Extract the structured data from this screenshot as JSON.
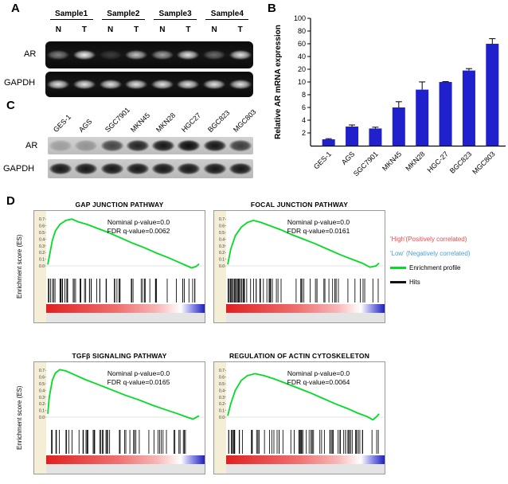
{
  "panelA": {
    "label": "A",
    "samples": [
      "Sample1",
      "Sample2",
      "Sample3",
      "Sample4"
    ],
    "lane_labels": [
      "N",
      "T",
      "N",
      "T",
      "N",
      "T",
      "N",
      "T"
    ],
    "row_ar": "AR",
    "row_gapdh": "GAPDH",
    "ar_band_intensities": [
      0.5,
      1,
      0.18,
      0.8,
      0.65,
      0.95,
      0.4,
      0.95
    ],
    "gapdh_band_intensities": [
      0.95,
      0.95,
      0.95,
      0.95,
      0.95,
      0.95,
      0.95,
      0.95
    ]
  },
  "panelB": {
    "label": "B"
  },
  "panelC": {
    "label": "C",
    "cell_lines": [
      "GES-1",
      "AGS",
      "SGC7901",
      "MKN45",
      "MKN28",
      "HGC27",
      "BGC823",
      "MGC803"
    ],
    "row_ar": "AR",
    "row_gapdh": "GAPDH",
    "ar_band_intensities": [
      0.22,
      0.28,
      0.7,
      0.88,
      0.95,
      1,
      0.95,
      0.75
    ],
    "gapdh_band_intensities": [
      0.95,
      0.95,
      0.95,
      0.95,
      0.95,
      0.95,
      0.95,
      0.95
    ]
  },
  "panelD": {
    "label": "D",
    "es_axis_label": "Enrichment score (ES)",
    "legend": {
      "high": "'High'(Positively correlated)",
      "low": "'Low' (Negatively correlated)",
      "profile": "Enrichment profile",
      "hits": "Hits",
      "high_color": "#e84a4a",
      "low_color": "#4a9fd8",
      "profile_color": "#00dd22",
      "hits_color": "#111111"
    }
  },
  "chart_data": [
    {
      "type": "bar",
      "title": "",
      "xlabel": "",
      "ylabel": "Relative AR mRNA expression",
      "categories": [
        "GES-1",
        "AGS",
        "SGC7901",
        "MKN45",
        "MKN28",
        "HGC-27",
        "BGC823",
        "MGC803"
      ],
      "values": [
        1,
        3,
        2.7,
        6,
        8.8,
        10,
        28,
        70
      ],
      "errors": [
        0.1,
        0.25,
        0.2,
        0.9,
        1.3,
        0.6,
        3,
        8
      ],
      "yticks": [
        2,
        4,
        6,
        8,
        10,
        20,
        40,
        60,
        80,
        100
      ],
      "axis_note": "split linear axis: 0-10 lower half, 10-100 upper half",
      "bar_color": "#2020cc",
      "legend_position": "none",
      "grid": false
    },
    {
      "type": "line",
      "title": "GAP JUNCTION PATHWAY",
      "ylabel": "Enrichment score (ES)",
      "p_label": "Nominal p-value=0.0",
      "q_label": "FDR q-value=0.0062",
      "es_ticks": [
        0.7,
        0.6,
        0.5,
        0.4,
        0.3,
        0.2,
        0.1,
        0.0
      ],
      "curve": [
        [
          0,
          0.02
        ],
        [
          0.015,
          0.2
        ],
        [
          0.03,
          0.38
        ],
        [
          0.05,
          0.52
        ],
        [
          0.08,
          0.62
        ],
        [
          0.12,
          0.68
        ],
        [
          0.16,
          0.7
        ],
        [
          0.2,
          0.66
        ],
        [
          0.26,
          0.62
        ],
        [
          0.33,
          0.56
        ],
        [
          0.4,
          0.5
        ],
        [
          0.48,
          0.42
        ],
        [
          0.56,
          0.34
        ],
        [
          0.64,
          0.27
        ],
        [
          0.72,
          0.19
        ],
        [
          0.8,
          0.12
        ],
        [
          0.87,
          0.05
        ],
        [
          0.92,
          0
        ],
        [
          0.95,
          -0.03
        ],
        [
          0.98,
          -0.01
        ],
        [
          1,
          0.03
        ]
      ],
      "hits": 58,
      "seed": 7,
      "curve_color": "#00dd22"
    },
    {
      "type": "line",
      "title": "FOCAL JUNCTION PATHWAY",
      "ylabel": "Enrichment score (ES)",
      "p_label": "Nominal p-value=0.0",
      "q_label": "FDR q-value=0.0161",
      "es_ticks": [
        0.7,
        0.6,
        0.5,
        0.4,
        0.3,
        0.2,
        0.1,
        0.0
      ],
      "curve": [
        [
          0,
          0.02
        ],
        [
          0.02,
          0.25
        ],
        [
          0.05,
          0.45
        ],
        [
          0.09,
          0.58
        ],
        [
          0.13,
          0.65
        ],
        [
          0.17,
          0.68
        ],
        [
          0.22,
          0.65
        ],
        [
          0.28,
          0.6
        ],
        [
          0.35,
          0.54
        ],
        [
          0.42,
          0.47
        ],
        [
          0.5,
          0.4
        ],
        [
          0.58,
          0.33
        ],
        [
          0.66,
          0.25
        ],
        [
          0.74,
          0.17
        ],
        [
          0.82,
          0.1
        ],
        [
          0.89,
          0.04
        ],
        [
          0.94,
          -0.02
        ],
        [
          0.98,
          0
        ],
        [
          1,
          0.04
        ]
      ],
      "hits": 66,
      "seed": 13,
      "curve_color": "#00dd22"
    },
    {
      "type": "line",
      "title": "TGFβ SIGNALING PATHWAY",
      "ylabel": "Enrichment score (ES)",
      "p_label": "Nominal p-value=0.0",
      "q_label": "FDR q-value=0.0165",
      "es_ticks": [
        0.7,
        0.6,
        0.5,
        0.4,
        0.3,
        0.2,
        0.1,
        0.0
      ],
      "curve": [
        [
          0,
          0.05
        ],
        [
          0.01,
          0.3
        ],
        [
          0.03,
          0.55
        ],
        [
          0.05,
          0.66
        ],
        [
          0.08,
          0.71
        ],
        [
          0.12,
          0.69
        ],
        [
          0.18,
          0.63
        ],
        [
          0.25,
          0.56
        ],
        [
          0.33,
          0.49
        ],
        [
          0.42,
          0.41
        ],
        [
          0.51,
          0.33
        ],
        [
          0.6,
          0.26
        ],
        [
          0.69,
          0.18
        ],
        [
          0.78,
          0.11
        ],
        [
          0.86,
          0.05
        ],
        [
          0.92,
          0
        ],
        [
          0.96,
          -0.03
        ],
        [
          1,
          0.02
        ]
      ],
      "hits": 52,
      "seed": 21,
      "curve_color": "#00dd22"
    },
    {
      "type": "line",
      "title": "REGULATION OF ACTIN CYTOSKELETON",
      "ylabel": "Enrichment score (ES)",
      "p_label": "Nominal p-value=0.0",
      "q_label": "FDR q-value=0.0064",
      "es_ticks": [
        0.7,
        0.6,
        0.5,
        0.4,
        0.3,
        0.2,
        0.1,
        0.0
      ],
      "curve": [
        [
          0,
          0.02
        ],
        [
          0.02,
          0.2
        ],
        [
          0.05,
          0.4
        ],
        [
          0.09,
          0.55
        ],
        [
          0.13,
          0.62
        ],
        [
          0.18,
          0.65
        ],
        [
          0.24,
          0.62
        ],
        [
          0.31,
          0.57
        ],
        [
          0.39,
          0.5
        ],
        [
          0.47,
          0.43
        ],
        [
          0.55,
          0.36
        ],
        [
          0.63,
          0.28
        ],
        [
          0.71,
          0.2
        ],
        [
          0.79,
          0.13
        ],
        [
          0.86,
          0.06
        ],
        [
          0.92,
          0.01
        ],
        [
          0.96,
          -0.04
        ],
        [
          0.99,
          0.02
        ],
        [
          1,
          0.05
        ]
      ],
      "hits": 72,
      "seed": 33,
      "curve_color": "#00dd22"
    }
  ]
}
